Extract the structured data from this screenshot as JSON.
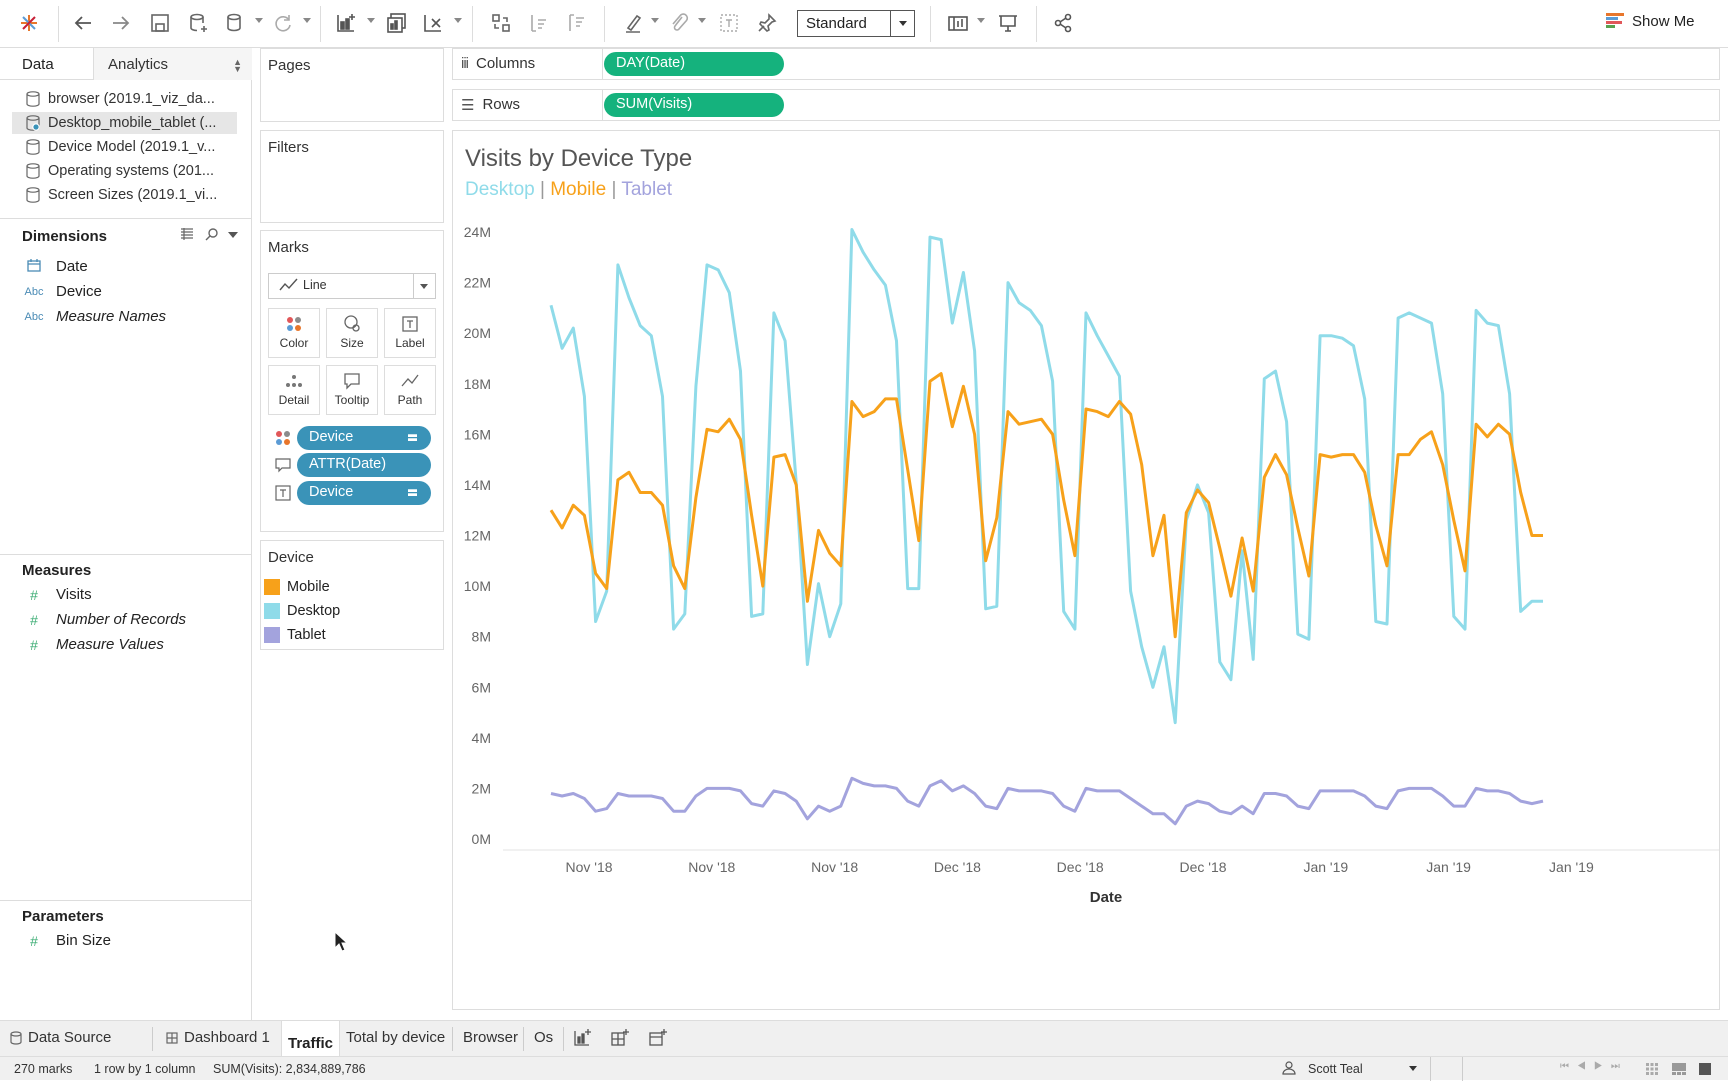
{
  "toolbar": {
    "fit_select": "Standard",
    "show_me": "Show Me",
    "show_me_colors": [
      "#e8762b",
      "#5b9bd5",
      "#e15759",
      "#59a14f"
    ]
  },
  "left_pane": {
    "tabs": {
      "data": "Data",
      "analytics": "Analytics"
    },
    "data_sources": [
      {
        "label": "browser (2019.1_viz_da..."
      },
      {
        "label": "Desktop_mobile_tablet (..."
      },
      {
        "label": "Device Model (2019.1_v..."
      },
      {
        "label": "Operating systems (201..."
      },
      {
        "label": "Screen Sizes (2019.1_vi..."
      }
    ],
    "dimensions_title": "Dimensions",
    "dimensions": [
      {
        "type": "date",
        "label": "Date"
      },
      {
        "type": "Abc",
        "label": "Device"
      },
      {
        "type": "Abc",
        "label": "Measure Names"
      }
    ],
    "measures_title": "Measures",
    "measures": [
      {
        "label": "Visits"
      },
      {
        "label": "Number of Records"
      },
      {
        "label": "Measure Values"
      }
    ],
    "parameters_title": "Parameters",
    "parameters": [
      {
        "label": "Bin Size"
      }
    ]
  },
  "cards": {
    "pages": "Pages",
    "filters": "Filters",
    "marks": "Marks",
    "mark_type": "Line",
    "mark_buttons": {
      "color": "Color",
      "size": "Size",
      "label": "Label",
      "detail": "Detail",
      "tooltip": "Tooltip",
      "path": "Path"
    },
    "mark_pills": [
      "Device",
      "ATTR(Date)",
      "Device"
    ],
    "legend_title": "Device",
    "legend": [
      {
        "label": "Mobile",
        "color": "#f7a11a"
      },
      {
        "label": "Desktop",
        "color": "#8fdbe9"
      },
      {
        "label": "Tablet",
        "color": "#a3a3dd"
      }
    ]
  },
  "shelves": {
    "columns_label": "Columns",
    "columns_pill": "DAY(Date)",
    "rows_label": "Rows",
    "rows_pill": "SUM(Visits)"
  },
  "chart_data": {
    "type": "line",
    "title": "Visits by Device Type",
    "subtitle_parts": [
      {
        "text": "Desktop",
        "color": "#8fdbe9"
      },
      {
        "text": " | ",
        "color": "#999999"
      },
      {
        "text": "Mobile",
        "color": "#f7a11a"
      },
      {
        "text": " | ",
        "color": "#999999"
      },
      {
        "text": "Tablet",
        "color": "#a3a3dd"
      }
    ],
    "xlabel": "Date",
    "ylabel": "",
    "x_ticks": [
      "Nov '18",
      "Nov '18",
      "Nov '18",
      "Dec '18",
      "Dec '18",
      "Dec '18",
      "Jan '19",
      "Jan '19",
      "Jan '19"
    ],
    "y_ticks": [
      "0M",
      "2M",
      "4M",
      "6M",
      "8M",
      "10M",
      "12M",
      "14M",
      "16M",
      "18M",
      "20M",
      "22M",
      "24M"
    ],
    "ylim": [
      0,
      24
    ],
    "x_count": 90,
    "grid": false,
    "series": [
      {
        "name": "Desktop",
        "color": "#8fdbe9",
        "values": [
          21.1,
          19.4,
          20.2,
          17.5,
          8.6,
          9.8,
          22.7,
          21.4,
          20.3,
          19.9,
          17.5,
          8.3,
          8.9,
          17.9,
          22.7,
          22.5,
          21.6,
          18.5,
          8.8,
          8.9,
          20.8,
          19.7,
          14.1,
          6.9,
          10.1,
          8.0,
          9.3,
          24.1,
          23.2,
          22.5,
          21.9,
          19.7,
          9.9,
          9.9,
          23.8,
          23.7,
          20.4,
          22.4,
          19.3,
          9.1,
          9.2,
          22.0,
          21.2,
          20.9,
          20.3,
          18.1,
          9.0,
          8.3,
          20.8,
          19.9,
          19.1,
          18.3,
          9.8,
          7.6,
          6.0,
          7.6,
          4.6,
          12.6,
          14.0,
          12.9,
          7.0,
          6.3,
          11.4,
          7.1,
          18.2,
          18.5,
          16.5,
          8.1,
          7.9,
          19.9,
          19.9,
          19.8,
          19.5,
          17.4,
          8.6,
          8.5,
          20.6,
          20.8,
          20.6,
          20.4,
          17.6,
          8.8,
          8.3,
          20.9,
          20.4,
          20.3,
          17.6,
          9.0,
          9.4,
          9.4
        ]
      },
      {
        "name": "Mobile",
        "color": "#f7a11a",
        "values": [
          13.0,
          12.3,
          13.2,
          12.8,
          10.5,
          9.9,
          14.2,
          14.5,
          13.7,
          13.7,
          13.2,
          10.8,
          9.9,
          13.5,
          16.2,
          16.1,
          16.6,
          15.8,
          12.8,
          10.0,
          15.1,
          15.2,
          14.0,
          9.4,
          12.2,
          11.3,
          10.8,
          17.3,
          16.7,
          16.9,
          17.4,
          17.4,
          14.6,
          11.8,
          18.1,
          18.4,
          16.3,
          17.9,
          16.0,
          11.0,
          12.7,
          16.9,
          16.4,
          16.5,
          16.6,
          16.0,
          13.4,
          11.2,
          17.0,
          16.9,
          16.7,
          17.3,
          16.8,
          14.8,
          11.2,
          12.8,
          8.0,
          12.9,
          13.8,
          13.3,
          11.5,
          9.6,
          11.9,
          9.8,
          14.3,
          15.2,
          14.4,
          12.3,
          10.4,
          15.2,
          15.1,
          15.2,
          15.2,
          14.5,
          12.4,
          10.8,
          15.2,
          15.2,
          15.8,
          16.1,
          14.8,
          12.6,
          10.6,
          16.4,
          15.9,
          16.4,
          16.0,
          13.7,
          12.0,
          12.0
        ]
      },
      {
        "name": "Tablet",
        "color": "#a3a3dd",
        "values": [
          1.8,
          1.7,
          1.8,
          1.6,
          1.1,
          1.2,
          1.8,
          1.7,
          1.7,
          1.7,
          1.6,
          1.1,
          1.1,
          1.7,
          2.0,
          2.0,
          2.0,
          1.9,
          1.4,
          1.3,
          1.9,
          1.8,
          1.5,
          0.8,
          1.3,
          1.1,
          1.3,
          2.4,
          2.2,
          2.1,
          2.1,
          2.0,
          1.5,
          1.3,
          2.1,
          2.3,
          1.9,
          2.1,
          1.8,
          1.3,
          1.2,
          2.0,
          1.9,
          1.9,
          1.9,
          1.8,
          1.3,
          1.1,
          2.0,
          1.9,
          1.9,
          1.9,
          1.6,
          1.3,
          1.0,
          1.0,
          0.6,
          1.3,
          1.5,
          1.4,
          1.1,
          1.0,
          1.3,
          1.0,
          1.8,
          1.8,
          1.7,
          1.3,
          1.2,
          1.9,
          1.9,
          1.9,
          1.9,
          1.7,
          1.3,
          1.2,
          1.9,
          2.0,
          2.0,
          2.0,
          1.7,
          1.3,
          1.3,
          2.0,
          1.9,
          1.9,
          1.8,
          1.5,
          1.4,
          1.5
        ]
      }
    ]
  },
  "sheet_tabs": {
    "data_source": "Data Source",
    "tabs": [
      "Dashboard 1",
      "Traffic",
      "Total by device",
      "Browser",
      "Os"
    ],
    "active": "Traffic"
  },
  "status": {
    "marks": "270 marks",
    "rows_cols": "1 row by 1 column",
    "sum": "SUM(Visits): 2,834,889,786",
    "user": "Scott Teal"
  }
}
